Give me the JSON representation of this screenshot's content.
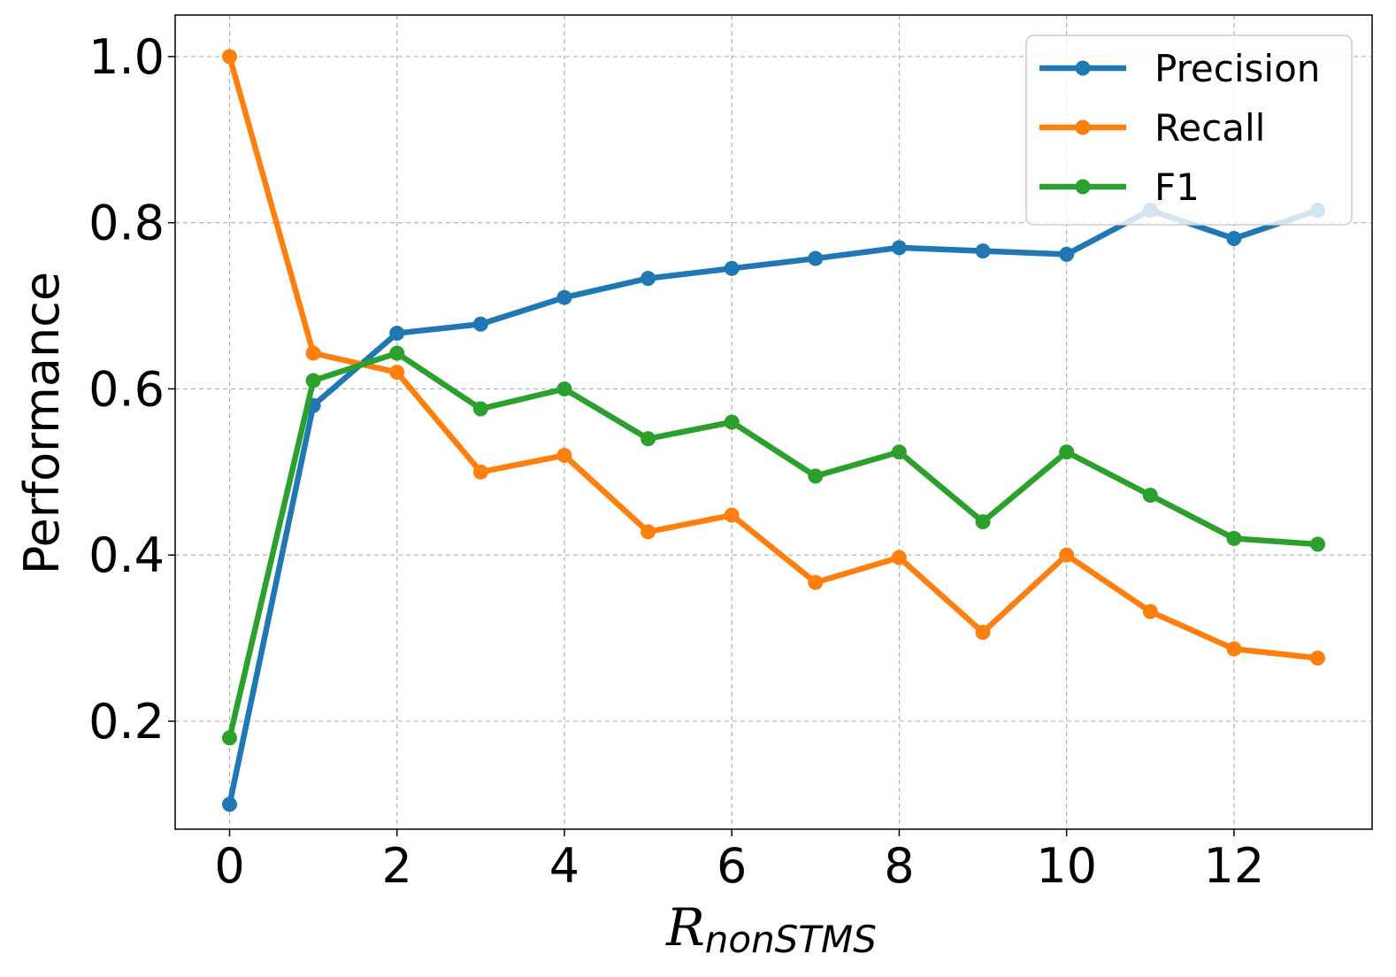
{
  "chart_data": {
    "type": "line",
    "xlabel_main": "R",
    "xlabel_sub": "nonSTMS",
    "ylabel": "Performance",
    "x": [
      0,
      1,
      2,
      3,
      4,
      5,
      6,
      7,
      8,
      9,
      10,
      11,
      12,
      13
    ],
    "xlim": [
      -0.65,
      13.65
    ],
    "ylim": [
      0.07,
      1.05
    ],
    "xticks": [
      0,
      2,
      4,
      6,
      8,
      10,
      12
    ],
    "yticks": [
      0.2,
      0.4,
      0.6,
      0.8,
      1.0
    ],
    "ytick_labels": [
      "0.2",
      "0.4",
      "0.6",
      "0.8",
      "1.0"
    ],
    "xtick_labels": [
      "0",
      "2",
      "4",
      "6",
      "8",
      "10",
      "12"
    ],
    "grid": true,
    "legend_position": "top-right",
    "series": [
      {
        "name": "Precision",
        "color": "#1f77b4",
        "values": [
          0.1,
          0.58,
          0.667,
          0.678,
          0.71,
          0.733,
          0.745,
          0.757,
          0.77,
          0.766,
          0.762,
          0.815,
          0.781,
          0.815
        ]
      },
      {
        "name": "Recall",
        "color": "#ff7f0e",
        "values": [
          1.0,
          0.643,
          0.62,
          0.5,
          0.52,
          0.428,
          0.448,
          0.367,
          0.397,
          0.307,
          0.4,
          0.332,
          0.287,
          0.276
        ]
      },
      {
        "name": "F1",
        "color": "#2ca02c",
        "values": [
          0.18,
          0.61,
          0.643,
          0.576,
          0.6,
          0.54,
          0.56,
          0.495,
          0.524,
          0.44,
          0.524,
          0.472,
          0.42,
          0.413
        ]
      }
    ]
  }
}
